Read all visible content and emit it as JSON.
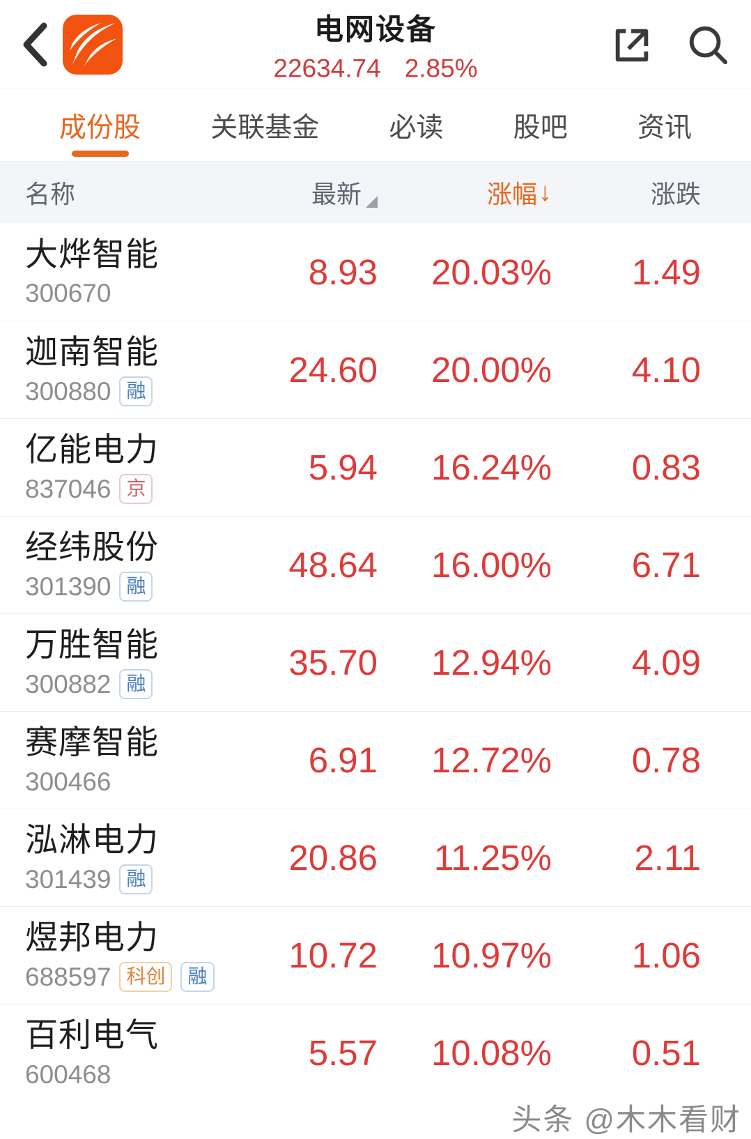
{
  "colors": {
    "accent_orange": "#e7671d",
    "up_red": "#df3a38",
    "logo_orange": "#f2530f",
    "badge_blue": "#4a7fc1",
    "badge_red": "#cf6060",
    "badge_orange": "#e2833a",
    "table_head_bg": "#f3f5f8"
  },
  "header": {
    "title": "电网设备",
    "index_value": "22634.74",
    "index_change_pct": "2.85%"
  },
  "tabs": [
    {
      "label": "成份股",
      "active": true
    },
    {
      "label": "关联基金",
      "active": false
    },
    {
      "label": "必读",
      "active": false
    },
    {
      "label": "股吧",
      "active": false
    },
    {
      "label": "资讯",
      "active": false
    }
  ],
  "table": {
    "head": {
      "name": "名称",
      "latest": "最新",
      "change_pct": "涨幅",
      "sort_arrow": "↓",
      "change_amt": "涨跌"
    },
    "rows": [
      {
        "name": "大烨智能",
        "code": "300670",
        "badges": [],
        "latest": "8.93",
        "change_pct": "20.03%",
        "change_amt": "1.49"
      },
      {
        "name": "迦南智能",
        "code": "300880",
        "badges": [
          {
            "text": "融",
            "style": "blue"
          }
        ],
        "latest": "24.60",
        "change_pct": "20.00%",
        "change_amt": "4.10"
      },
      {
        "name": "亿能电力",
        "code": "837046",
        "badges": [
          {
            "text": "京",
            "style": "red"
          }
        ],
        "latest": "5.94",
        "change_pct": "16.24%",
        "change_amt": "0.83"
      },
      {
        "name": "经纬股份",
        "code": "301390",
        "badges": [
          {
            "text": "融",
            "style": "blue"
          }
        ],
        "latest": "48.64",
        "change_pct": "16.00%",
        "change_amt": "6.71"
      },
      {
        "name": "万胜智能",
        "code": "300882",
        "badges": [
          {
            "text": "融",
            "style": "blue"
          }
        ],
        "latest": "35.70",
        "change_pct": "12.94%",
        "change_amt": "4.09"
      },
      {
        "name": "赛摩智能",
        "code": "300466",
        "badges": [],
        "latest": "6.91",
        "change_pct": "12.72%",
        "change_amt": "0.78"
      },
      {
        "name": "泓淋电力",
        "code": "301439",
        "badges": [
          {
            "text": "融",
            "style": "blue"
          }
        ],
        "latest": "20.86",
        "change_pct": "11.25%",
        "change_amt": "2.11"
      },
      {
        "name": "煜邦电力",
        "code": "688597",
        "badges": [
          {
            "text": "科创",
            "style": "orange"
          },
          {
            "text": "融",
            "style": "blue"
          }
        ],
        "latest": "10.72",
        "change_pct": "10.97%",
        "change_amt": "1.06"
      },
      {
        "name": "百利电气",
        "code": "600468",
        "badges": [],
        "latest": "5.57",
        "change_pct": "10.08%",
        "change_amt": "0.51"
      }
    ]
  },
  "watermark": "头条 @木木看财"
}
